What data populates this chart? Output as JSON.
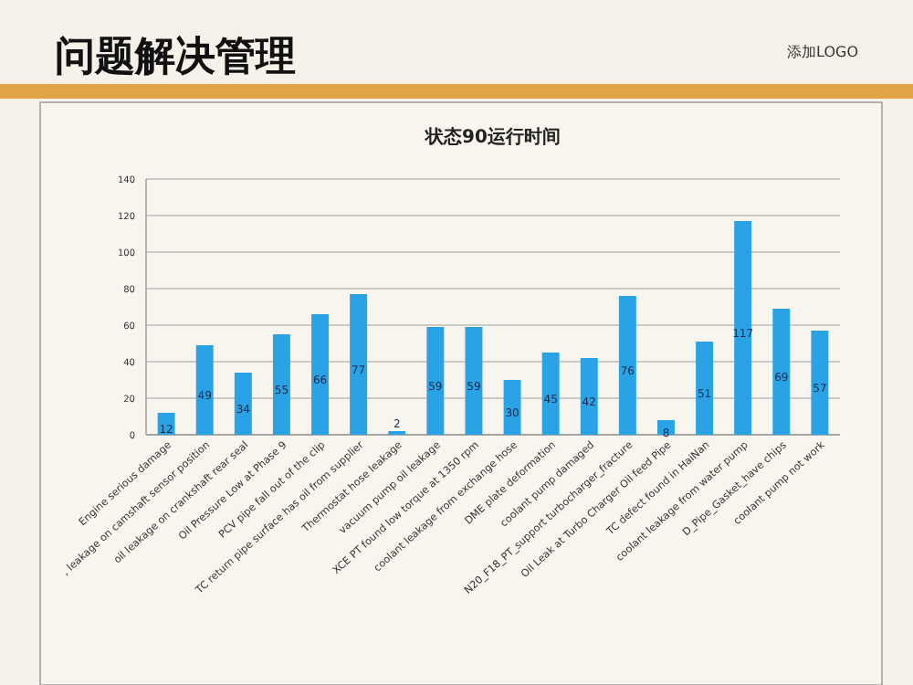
{
  "chart_data": {
    "type": "bar",
    "title": "问题解决管理",
    "subtitle": "状态90运行时间",
    "annotations": [
      "添加LOGO"
    ],
    "categories": [
      "Engine serious damage",
      ", leakage on camshaft sensor position",
      "oil leakage on crankshaft rear seal",
      "Oil Pressure Low at Phase 9",
      "PCV pipe fall out of the clip",
      "TC return pipe surface has oil from supplier",
      "Thermostat hose leakage",
      "vacuum pump oil leakage",
      "XCE PT found low torque at 1350 rpm",
      "coolant leakage from exchange hose",
      "DME plate deformation",
      "coolant pump damaged",
      "N20_F18_PT_support turbocharger_fracture",
      "Oil Leak at Turbo Charger Oil feed Pipe",
      "TC defect found in HaiNan",
      "coolant leakage from water pump",
      "D_Pipe_Gasket_have chips",
      "coolant pump not work"
    ],
    "values": [
      12,
      49,
      34,
      55,
      66,
      77,
      2,
      59,
      59,
      30,
      45,
      42,
      76,
      8,
      51,
      117,
      69,
      57
    ],
    "color": "#29a3e6",
    "ylim": [
      0,
      140
    ],
    "yticks": [
      0,
      20,
      40,
      60,
      80,
      100,
      120,
      140
    ],
    "grid": "y",
    "data_labels": true
  }
}
